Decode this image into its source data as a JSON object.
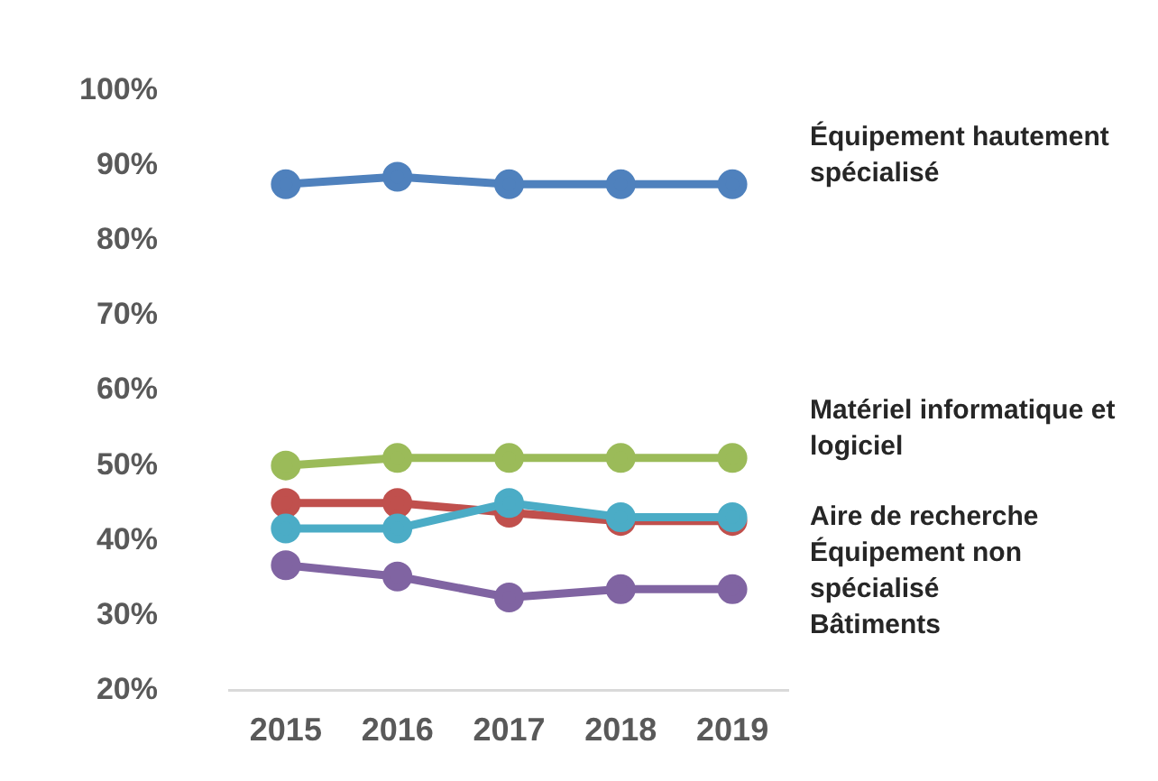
{
  "chart_data": {
    "type": "line",
    "categories": [
      "2015",
      "2016",
      "2017",
      "2018",
      "2019"
    ],
    "series": [
      {
        "name": "Équipement hautement spécialisé",
        "color": "#4f81bd",
        "values": [
          87.5,
          88.5,
          87.5,
          87.5,
          87.5
        ]
      },
      {
        "name": "Matériel informatique et logiciel",
        "color": "#9bbb59",
        "values": [
          50,
          51,
          51,
          51,
          51
        ]
      },
      {
        "name": "Équipement non spécialisé",
        "color": "#c0504d",
        "values": [
          45,
          45,
          43.7,
          42.6,
          42.6
        ]
      },
      {
        "name": "Aire de recherche",
        "color": "#4bacc6",
        "values": [
          41.6,
          41.6,
          45,
          43.1,
          43.1
        ]
      },
      {
        "name": "Bâtiments",
        "color": "#8064a2",
        "values": [
          36.7,
          35.2,
          32.4,
          33.5,
          33.5
        ]
      }
    ],
    "ylim": [
      20,
      100
    ],
    "yticks": [
      {
        "value": 20,
        "label": "20%"
      },
      {
        "value": 30,
        "label": "30%"
      },
      {
        "value": 40,
        "label": "40%"
      },
      {
        "value": 50,
        "label": "50%"
      },
      {
        "value": 60,
        "label": "60%"
      },
      {
        "value": 70,
        "label": "70%"
      },
      {
        "value": 80,
        "label": "80%"
      },
      {
        "value": 90,
        "label": "90%"
      },
      {
        "value": 100,
        "label": "100%"
      }
    ],
    "grid": false,
    "legend": false,
    "marker": "circle",
    "line_style": "solid"
  }
}
